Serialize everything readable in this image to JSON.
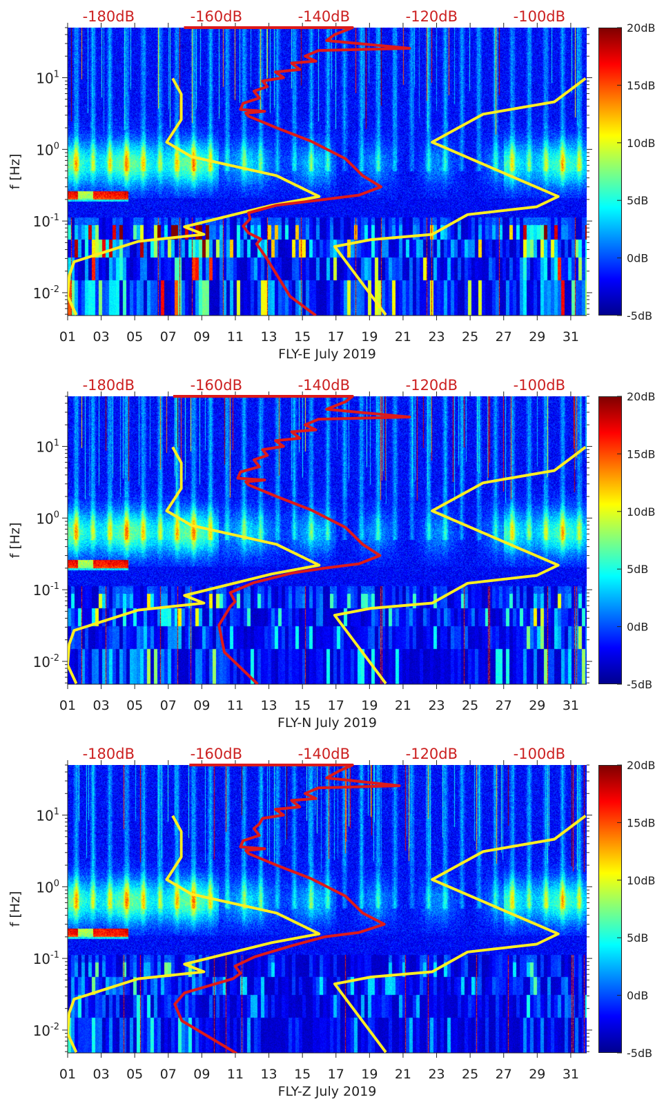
{
  "chart_data": [
    {
      "type": "heatmap",
      "xlabel": "FLY-E July 2019",
      "ylabel": "f [Hz]",
      "xlim": [
        1,
        31.95
      ],
      "ylim_hz": [
        0.0048,
        50
      ],
      "top_axis_db_range": [
        -187.6,
        -91.2
      ],
      "clim_db": [
        -5,
        20
      ],
      "x_ticks": [
        "01",
        "03",
        "05",
        "07",
        "09",
        "11",
        "13",
        "15",
        "17",
        "19",
        "21",
        "23",
        "25",
        "27",
        "29",
        "31"
      ],
      "y_ticks": [
        {
          "base": "10",
          "exp": "1"
        },
        {
          "base": "10",
          "exp": "0"
        },
        {
          "base": "10",
          "exp": "-1"
        },
        {
          "base": "10",
          "exp": "-2"
        }
      ],
      "top_ticks": [
        "-180dB",
        "-160dB",
        "-140dB",
        "-120dB",
        "-100dB"
      ],
      "colorbar_ticks": [
        "20dB",
        "15dB",
        "10dB",
        "5dB",
        "0dB",
        "-5dB"
      ],
      "low_energy": 1.0,
      "lines": {
        "yellow_low_model": [
          [
            -168.1,
            9.8
          ],
          [
            -166.5,
            5.9
          ],
          [
            -166.5,
            2.6
          ],
          [
            -169.2,
            1.26
          ],
          [
            -164.6,
            0.79
          ],
          [
            -148.8,
            0.43
          ],
          [
            -140.9,
            0.22
          ],
          [
            -149.7,
            0.166
          ],
          [
            -165.9,
            0.083
          ],
          [
            -162.3,
            0.065
          ],
          [
            -174.5,
            0.052
          ],
          [
            -186.4,
            0.027
          ],
          [
            -187.3,
            0.0174
          ],
          [
            -187.6,
            0.0089
          ],
          [
            -186,
            0.0049
          ]
        ],
        "yellow_high_model": [
          [
            -91.4,
            9.8
          ],
          [
            -97.2,
            4.6
          ],
          [
            -110.4,
            3.1
          ],
          [
            -119.9,
            1.26
          ],
          [
            -96.5,
            0.22
          ],
          [
            -100.5,
            0.158
          ],
          [
            -113.3,
            0.123
          ],
          [
            -119.9,
            0.065
          ],
          [
            -131.3,
            0.055
          ],
          [
            -138,
            0.044
          ],
          [
            -128.5,
            0.0049
          ]
        ],
        "red_station": [
          [
            -166,
            50
          ],
          [
            -134.7,
            50
          ],
          [
            -138,
            40
          ],
          [
            -139.5,
            33
          ],
          [
            -124.1,
            25.7
          ],
          [
            -141,
            24
          ],
          [
            -143.5,
            20
          ],
          [
            -141.5,
            17
          ],
          [
            -146,
            16
          ],
          [
            -144.5,
            13
          ],
          [
            -149,
            12
          ],
          [
            -147.5,
            10
          ],
          [
            -151.4,
            9
          ],
          [
            -150.5,
            7.5
          ],
          [
            -153,
            6.5
          ],
          [
            -152,
            5.2
          ],
          [
            -155,
            4.4
          ],
          [
            -155.5,
            3.6
          ],
          [
            -151,
            3.4
          ],
          [
            -154.5,
            3.2
          ],
          [
            -154,
            2.9
          ],
          [
            -148.8,
            2.0
          ],
          [
            -142.4,
            1.3
          ],
          [
            -136,
            0.74
          ],
          [
            -132.8,
            0.43
          ],
          [
            -129.4,
            0.3
          ],
          [
            -133.5,
            0.23
          ],
          [
            -139.9,
            0.2
          ],
          [
            -148.8,
            0.166
          ],
          [
            -154,
            0.13
          ],
          [
            -153.7,
            0.107
          ],
          [
            -155,
            0.085
          ],
          [
            -154,
            0.068
          ],
          [
            -151.7,
            0.056
          ],
          [
            -152.5,
            0.048
          ],
          [
            -150.5,
            0.029
          ],
          [
            -146.3,
            0.0089
          ],
          [
            -141.5,
            0.0048
          ]
        ]
      }
    },
    {
      "type": "heatmap",
      "xlabel": "FLY-N July 2019",
      "ylabel": "f [Hz]",
      "xlim": [
        1,
        31.95
      ],
      "ylim_hz": [
        0.0048,
        50
      ],
      "top_axis_db_range": [
        -187.6,
        -91.2
      ],
      "clim_db": [
        -5,
        20
      ],
      "x_ticks": [
        "01",
        "03",
        "05",
        "07",
        "09",
        "11",
        "13",
        "15",
        "17",
        "19",
        "21",
        "23",
        "25",
        "27",
        "29",
        "31"
      ],
      "y_ticks": [
        {
          "base": "10",
          "exp": "1"
        },
        {
          "base": "10",
          "exp": "0"
        },
        {
          "base": "10",
          "exp": "-1"
        },
        {
          "base": "10",
          "exp": "-2"
        }
      ],
      "top_ticks": [
        "-180dB",
        "-160dB",
        "-140dB",
        "-120dB",
        "-100dB"
      ],
      "colorbar_ticks": [
        "20dB",
        "15dB",
        "10dB",
        "5dB",
        "0dB",
        "-5dB"
      ],
      "low_energy": 0.6,
      "lines": {
        "yellow_low_model": [
          [
            -168.1,
            9.8
          ],
          [
            -166.5,
            5.9
          ],
          [
            -166.5,
            2.6
          ],
          [
            -169.2,
            1.26
          ],
          [
            -164.6,
            0.79
          ],
          [
            -148.8,
            0.43
          ],
          [
            -140.9,
            0.22
          ],
          [
            -149.7,
            0.166
          ],
          [
            -165.9,
            0.083
          ],
          [
            -162.3,
            0.065
          ],
          [
            -174.5,
            0.052
          ],
          [
            -186.4,
            0.027
          ],
          [
            -187.3,
            0.0174
          ],
          [
            -187.6,
            0.0089
          ],
          [
            -186,
            0.0049
          ]
        ],
        "yellow_high_model": [
          [
            -91.4,
            9.8
          ],
          [
            -97.2,
            4.6
          ],
          [
            -110.4,
            3.1
          ],
          [
            -119.9,
            1.26
          ],
          [
            -96.5,
            0.22
          ],
          [
            -100.5,
            0.158
          ],
          [
            -113.3,
            0.123
          ],
          [
            -119.9,
            0.065
          ],
          [
            -131.3,
            0.055
          ],
          [
            -138,
            0.044
          ],
          [
            -128.5,
            0.0049
          ]
        ],
        "red_station": [
          [
            -168,
            50
          ],
          [
            -134.7,
            50
          ],
          [
            -136,
            42
          ],
          [
            -139.5,
            33
          ],
          [
            -124.1,
            25.7
          ],
          [
            -141,
            24
          ],
          [
            -143.5,
            20
          ],
          [
            -141.5,
            17
          ],
          [
            -146,
            16
          ],
          [
            -144.5,
            13
          ],
          [
            -149,
            12
          ],
          [
            -147.5,
            10
          ],
          [
            -151.4,
            9
          ],
          [
            -150.5,
            7.5
          ],
          [
            -153,
            6.5
          ],
          [
            -152,
            5.2
          ],
          [
            -155.5,
            4.4
          ],
          [
            -156,
            3.6
          ],
          [
            -151,
            3.4
          ],
          [
            -154.5,
            3.2
          ],
          [
            -154,
            2.9
          ],
          [
            -148.8,
            2.0
          ],
          [
            -142.4,
            1.3
          ],
          [
            -136,
            0.74
          ],
          [
            -132.8,
            0.43
          ],
          [
            -129.6,
            0.3
          ],
          [
            -133.5,
            0.23
          ],
          [
            -139.9,
            0.2
          ],
          [
            -146,
            0.17
          ],
          [
            -153.1,
            0.125
          ],
          [
            -157.4,
            0.091
          ],
          [
            -156.5,
            0.068
          ],
          [
            -157.4,
            0.058
          ],
          [
            -159.5,
            0.032
          ],
          [
            -158.5,
            0.0135
          ],
          [
            -152.3,
            0.0048
          ]
        ]
      }
    },
    {
      "type": "heatmap",
      "xlabel": "FLY-Z July 2019",
      "ylabel": "f [Hz]",
      "xlim": [
        1,
        31.95
      ],
      "ylim_hz": [
        0.0048,
        50
      ],
      "top_axis_db_range": [
        -187.6,
        -91.2
      ],
      "clim_db": [
        -5,
        20
      ],
      "x_ticks": [
        "01",
        "03",
        "05",
        "07",
        "09",
        "11",
        "13",
        "15",
        "17",
        "19",
        "21",
        "23",
        "25",
        "27",
        "29",
        "31"
      ],
      "y_ticks": [
        {
          "base": "10",
          "exp": "1"
        },
        {
          "base": "10",
          "exp": "0"
        },
        {
          "base": "10",
          "exp": "-1"
        },
        {
          "base": "10",
          "exp": "-2"
        }
      ],
      "top_ticks": [
        "-180dB",
        "-160dB",
        "-140dB",
        "-120dB",
        "-100dB"
      ],
      "colorbar_ticks": [
        "20dB",
        "15dB",
        "10dB",
        "5dB",
        "0dB",
        "-5dB"
      ],
      "low_energy": 0.45,
      "lines": {
        "yellow_low_model": [
          [
            -168.1,
            9.8
          ],
          [
            -166.5,
            5.9
          ],
          [
            -166.5,
            2.6
          ],
          [
            -169.2,
            1.26
          ],
          [
            -164.6,
            0.79
          ],
          [
            -148.8,
            0.43
          ],
          [
            -140.9,
            0.22
          ],
          [
            -149.7,
            0.166
          ],
          [
            -165.9,
            0.083
          ],
          [
            -162.3,
            0.065
          ],
          [
            -174.5,
            0.052
          ],
          [
            -186.4,
            0.027
          ],
          [
            -187.3,
            0.0174
          ],
          [
            -187.6,
            0.0089
          ],
          [
            -186,
            0.0049
          ]
        ],
        "yellow_high_model": [
          [
            -91.4,
            9.8
          ],
          [
            -97.2,
            4.6
          ],
          [
            -110.4,
            3.1
          ],
          [
            -119.9,
            1.26
          ],
          [
            -96.5,
            0.22
          ],
          [
            -100.5,
            0.158
          ],
          [
            -113.3,
            0.123
          ],
          [
            -119.9,
            0.065
          ],
          [
            -131.3,
            0.055
          ],
          [
            -138,
            0.044
          ],
          [
            -128.5,
            0.0049
          ]
        ],
        "red_station": [
          [
            -165,
            50
          ],
          [
            -134.7,
            50
          ],
          [
            -137,
            42
          ],
          [
            -139.5,
            33
          ],
          [
            -126,
            25.7
          ],
          [
            -141,
            24
          ],
          [
            -143.5,
            20
          ],
          [
            -141.5,
            17
          ],
          [
            -146,
            16
          ],
          [
            -144.5,
            13
          ],
          [
            -149,
            12
          ],
          [
            -147.5,
            10
          ],
          [
            -151.4,
            9
          ],
          [
            -152,
            7.5
          ],
          [
            -153,
            6.5
          ],
          [
            -152,
            5.2
          ],
          [
            -155,
            4.4
          ],
          [
            -155.5,
            3.6
          ],
          [
            -151,
            3.4
          ],
          [
            -154.5,
            3.2
          ],
          [
            -154,
            2.9
          ],
          [
            -148.8,
            2.0
          ],
          [
            -142.4,
            1.3
          ],
          [
            -136,
            0.74
          ],
          [
            -132.8,
            0.43
          ],
          [
            -128.8,
            0.3
          ],
          [
            -133.5,
            0.23
          ],
          [
            -139.9,
            0.2
          ],
          [
            -146,
            0.15
          ],
          [
            -152.9,
            0.105
          ],
          [
            -156.5,
            0.078
          ],
          [
            -155.5,
            0.062
          ],
          [
            -156.9,
            0.052
          ],
          [
            -165.9,
            0.033
          ],
          [
            -167.7,
            0.023
          ],
          [
            -166.4,
            0.0135
          ],
          [
            -156.2,
            0.0047
          ]
        ]
      }
    }
  ],
  "colors": {
    "yellow_line": "#ffee22",
    "red_line": "#dd1a1a",
    "top_axis_text": "#cc1f1f"
  }
}
